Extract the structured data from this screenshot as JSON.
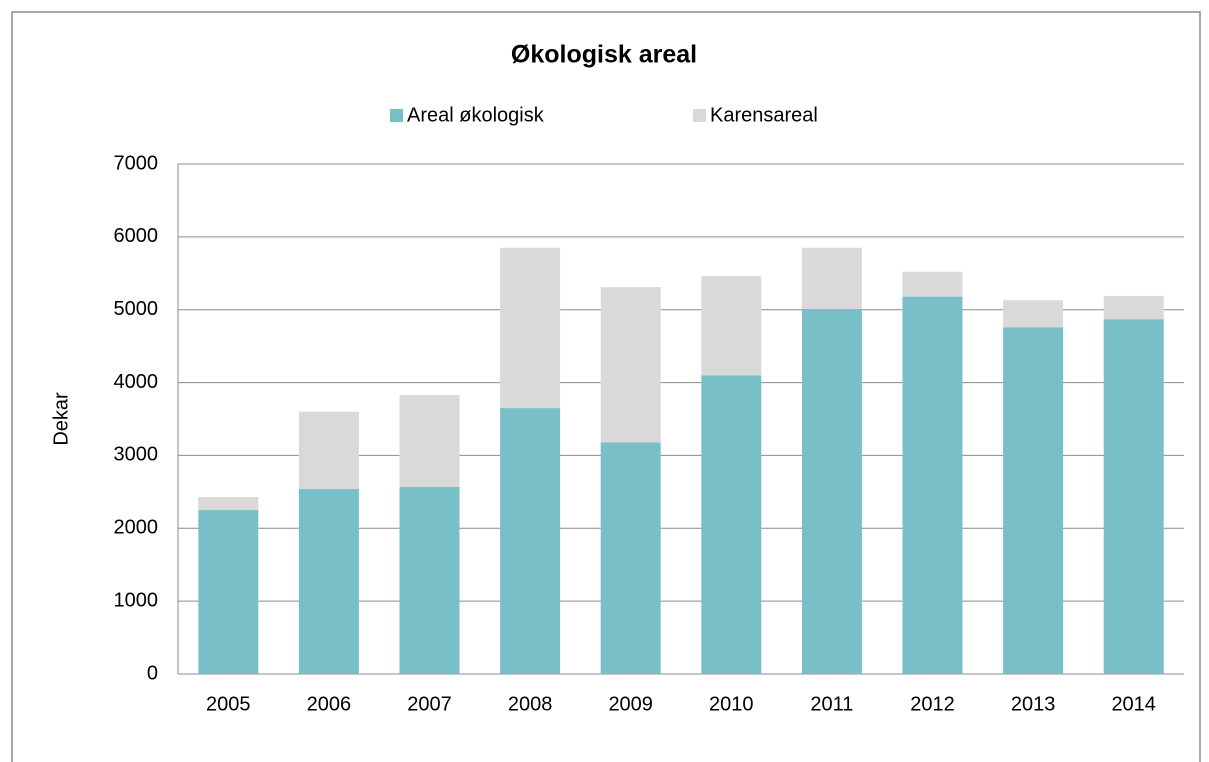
{
  "chart_data": {
    "type": "stacked_bar",
    "title": "Økologisk areal",
    "y_label": "Dekar",
    "categories": [
      "2005",
      "2006",
      "2007",
      "2008",
      "2009",
      "2010",
      "2011",
      "2012",
      "2013",
      "2014"
    ],
    "series": [
      {
        "name": "Areal økologisk",
        "color": "#78bfc8",
        "values": [
          2250,
          2540,
          2570,
          3650,
          3180,
          4100,
          5010,
          5180,
          4760,
          4870
        ]
      },
      {
        "name": "Karensareal",
        "color": "#d9d9d9",
        "values": [
          180,
          1060,
          1260,
          2200,
          2130,
          1360,
          840,
          340,
          370,
          320
        ]
      }
    ],
    "ylim": [
      0,
      7000
    ],
    "yticks": [
      0,
      1000,
      2000,
      3000,
      4000,
      5000,
      6000,
      7000
    ],
    "grid": true,
    "legend": "top"
  }
}
